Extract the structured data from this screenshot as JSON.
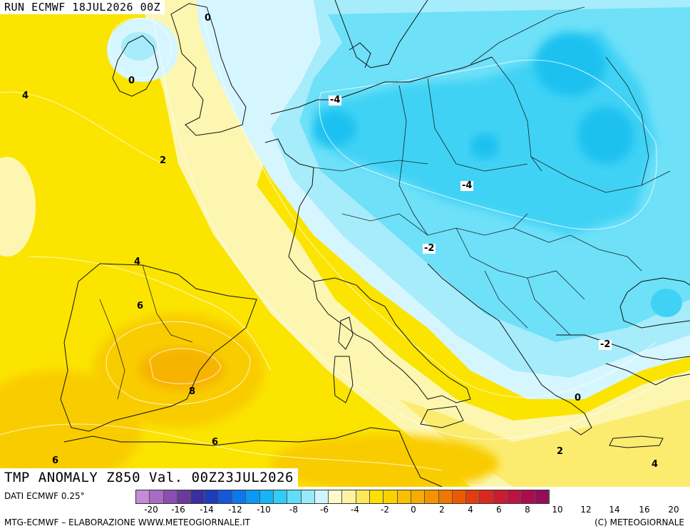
{
  "header": {
    "run_label": "RUN ECMWF 18JUL2026 00Z"
  },
  "map": {
    "title": "TMP ANOMALY Z850 Val. 00Z23JUL2026",
    "contour_labels": [
      "0",
      "0",
      "4",
      "2",
      "-4",
      "-4",
      "-2",
      "4",
      "6",
      "8",
      "-2",
      "0",
      "6",
      "6",
      "2",
      "4"
    ],
    "colors": {
      "sea_pale_yellow": "#fdf6b0",
      "yellow": "#fbe800",
      "deep_yellow": "#fbd400",
      "orange": "#f9b800",
      "pale_cyan": "#d6f6ff",
      "light_cyan": "#a7ecfb",
      "cyan": "#6ee0f8",
      "deep_cyan": "#40d2f5",
      "blue_cyan": "#1ec1f0"
    }
  },
  "legend": {
    "ticks": [
      "-20",
      "-16",
      "-14",
      "-12",
      "-10",
      "-8",
      "-6",
      "-4",
      "-2",
      "0",
      "2",
      "4",
      "6",
      "8",
      "10",
      "12",
      "14",
      "16",
      "20"
    ],
    "colors": [
      "#c48bd6",
      "#a86cc4",
      "#8a4fb0",
      "#6a3a9c",
      "#3a2f9c",
      "#1e3dba",
      "#1458d8",
      "#0a78ee",
      "#0a98f4",
      "#14b6f4",
      "#30cef6",
      "#62ddf8",
      "#98eafb",
      "#cdf6fe",
      "#fdf9c8",
      "#fef3a0",
      "#fde85c",
      "#fbe000",
      "#f9d200",
      "#f8c000",
      "#f6ac00",
      "#f49200",
      "#f07800",
      "#ec5a00",
      "#e43c10",
      "#d82a20",
      "#cc1c30",
      "#bc1440",
      "#a80e4c",
      "#960c58"
    ]
  },
  "footer": {
    "data_source": "DATI ECMWF 0.25°",
    "credit": "MTG-ECMWF – ELABORAZIONE WWW.METEOGIORNALE.IT",
    "copyright": "(C) METEOGIORNALE"
  }
}
